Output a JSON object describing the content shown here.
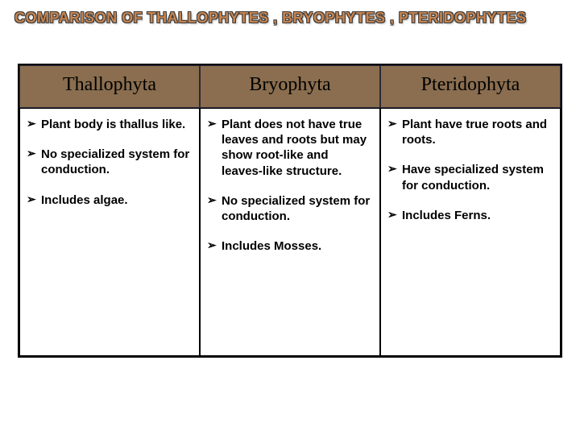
{
  "title": "COMPARISON OF THALLOPHYTES , BRYOPHYTES , PTERIDOPHYTES",
  "colors": {
    "title_fill": "#c7844f",
    "title_outline": "#3a3a3a",
    "header_bg": "#8a6e4f",
    "border": "#000000",
    "header_border": "#2a2a3a",
    "background": "#ffffff",
    "text": "#000000"
  },
  "typography": {
    "title_fontsize": 18,
    "header_fontsize": 24,
    "body_fontsize": 15,
    "header_font": "serif",
    "body_font": "sans-serif",
    "body_weight": "bold"
  },
  "table": {
    "type": "table",
    "columns": [
      {
        "label": "Thallophyta"
      },
      {
        "label": "Bryophyta"
      },
      {
        "label": "Pteridophyta"
      }
    ],
    "cells": [
      {
        "bullets": [
          "Plant body is thallus like.",
          "No specialized system for conduction.",
          "Includes algae."
        ]
      },
      {
        "bullets": [
          "Plant does not have true leaves and roots but may show root-like and leaves-like structure.",
          "No specialized system for conduction.",
          "Includes Mosses."
        ]
      },
      {
        "bullets": [
          "Plant have true roots and roots.",
          "Have specialized system for conduction.",
          "Includes Ferns."
        ]
      }
    ]
  }
}
